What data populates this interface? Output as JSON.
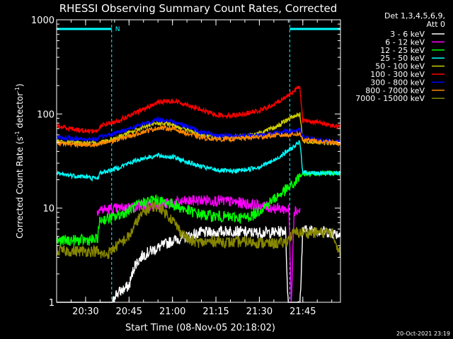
{
  "chart_data": {
    "type": "line",
    "title": "RHESSI Observing Summary Count Rates, Corrected",
    "xlabel": "Start Time (08-Nov-05 20:18:02)",
    "ylabel_main": "Corrected Count Rate (s",
    "ylabel_sup1": "-1",
    "ylabel_mid": " detector",
    "ylabel_sup2": "-1",
    "ylabel_end": ")",
    "yscale": "log",
    "ylim": [
      1,
      1000
    ],
    "xlim_min": [
      20,
      50
    ],
    "y_ticks": [
      {
        "value": 1,
        "label": "1"
      },
      {
        "value": 10,
        "label": "10"
      },
      {
        "value": 100,
        "label": "100"
      },
      {
        "value": 1000,
        "label": "1000"
      }
    ],
    "x_ticks": [
      {
        "value": 30,
        "label": "20:30"
      },
      {
        "value": 45,
        "label": "20:45"
      },
      {
        "value": 60,
        "label": "21:00"
      },
      {
        "value": 75,
        "label": "21:15"
      },
      {
        "value": 90,
        "label": "21:30"
      },
      {
        "value": 105,
        "label": "21:45"
      }
    ],
    "legend_header": "Det 1,3,4,5,6,9,",
    "legend_subheader": "Att 0",
    "timestamp": "20-Oct-2021 23:19",
    "night_marker_label": "N",
    "night_intervals": [
      [
        20,
        39
      ],
      [
        100.5,
        118
      ]
    ],
    "series": [
      {
        "name": "3 - 6 keV",
        "color": "#ffffff",
        "points": [
          [
            20,
            0.85
          ],
          [
            39,
            0.85
          ],
          [
            40,
            1.2
          ],
          [
            42,
            1.3
          ],
          [
            45,
            1.5
          ],
          [
            47,
            2.5
          ],
          [
            50,
            3.2
          ],
          [
            55,
            3.8
          ],
          [
            60,
            4.5
          ],
          [
            65,
            5.0
          ],
          [
            70,
            5.5
          ],
          [
            75,
            5.5
          ],
          [
            80,
            5.8
          ],
          [
            85,
            5.5
          ],
          [
            90,
            5.5
          ],
          [
            95,
            5.5
          ],
          [
            99,
            5.8
          ],
          [
            100,
            0.9
          ],
          [
            104,
            0.9
          ],
          [
            105,
            5.8
          ],
          [
            110,
            5.8
          ],
          [
            115,
            5.5
          ],
          [
            118,
            5.2
          ]
        ]
      },
      {
        "name": "6 - 12 keV",
        "color": "#ff00ff",
        "points": [
          [
            34,
            9.6
          ],
          [
            40,
            9.8
          ],
          [
            45,
            10.2
          ],
          [
            50,
            10.6
          ],
          [
            55,
            11.0
          ],
          [
            60,
            11.3
          ],
          [
            65,
            11.8
          ],
          [
            70,
            12.2
          ],
          [
            75,
            12.0
          ],
          [
            80,
            11.7
          ],
          [
            85,
            11.2
          ],
          [
            90,
            10.6
          ],
          [
            95,
            10.0
          ],
          [
            99,
            9.8
          ],
          [
            100.2,
            9.6
          ],
          [
            101,
            1.0
          ],
          [
            102,
            9.5
          ],
          [
            104,
            9.4
          ]
        ]
      },
      {
        "name": "12 - 25 keV",
        "color": "#00ff00",
        "points": [
          [
            20,
            4.5
          ],
          [
            34,
            4.6
          ],
          [
            35,
            7.5
          ],
          [
            40,
            8.0
          ],
          [
            45,
            9.5
          ],
          [
            50,
            11.5
          ],
          [
            53,
            12.3
          ],
          [
            55,
            12.0
          ],
          [
            60,
            11.0
          ],
          [
            65,
            9.5
          ],
          [
            70,
            8.5
          ],
          [
            75,
            8.2
          ],
          [
            80,
            8.0
          ],
          [
            85,
            7.9
          ],
          [
            88,
            8.5
          ],
          [
            92,
            10.5
          ],
          [
            95,
            12.5
          ],
          [
            99,
            15.5
          ],
          [
            102,
            18.0
          ],
          [
            104,
            22.0
          ],
          [
            105,
            23.0
          ],
          [
            110,
            23.5
          ],
          [
            115,
            23.5
          ],
          [
            118,
            23.5
          ]
        ]
      },
      {
        "name": "25 - 50 keV",
        "color": "#00ffff",
        "points": [
          [
            20,
            23.0
          ],
          [
            30,
            21.5
          ],
          [
            34,
            20.5
          ],
          [
            35,
            23.5
          ],
          [
            40,
            26.0
          ],
          [
            45,
            30.0
          ],
          [
            50,
            34.0
          ],
          [
            55,
            36.0
          ],
          [
            60,
            35.0
          ],
          [
            65,
            31.0
          ],
          [
            70,
            27.5
          ],
          [
            75,
            25.5
          ],
          [
            80,
            24.5
          ],
          [
            85,
            25.5
          ],
          [
            90,
            27.5
          ],
          [
            95,
            32.0
          ],
          [
            99,
            39.0
          ],
          [
            102,
            45.0
          ],
          [
            104,
            50.0
          ],
          [
            105,
            24.0
          ],
          [
            110,
            23.5
          ],
          [
            118,
            23.5
          ]
        ]
      },
      {
        "name": "50 - 100 keV",
        "color": "#cccc00",
        "points": [
          [
            20,
            51.0
          ],
          [
            30,
            49.0
          ],
          [
            34,
            48.5
          ],
          [
            36,
            51.0
          ],
          [
            40,
            55.0
          ],
          [
            45,
            63.0
          ],
          [
            50,
            73.0
          ],
          [
            55,
            80.0
          ],
          [
            60,
            77.0
          ],
          [
            65,
            68.0
          ],
          [
            70,
            60.0
          ],
          [
            75,
            57.0
          ],
          [
            80,
            57.0
          ],
          [
            85,
            58.0
          ],
          [
            90,
            62.0
          ],
          [
            95,
            71.0
          ],
          [
            99,
            84.0
          ],
          [
            102,
            95.0
          ],
          [
            104,
            100.0
          ],
          [
            105,
            52.0
          ],
          [
            110,
            50.0
          ],
          [
            118,
            48.5
          ]
        ]
      },
      {
        "name": "100 - 300 keV",
        "color": "#ff0000",
        "points": [
          [
            20,
            74.0
          ],
          [
            30,
            66.0
          ],
          [
            34,
            66.0
          ],
          [
            36,
            77.0
          ],
          [
            40,
            82.0
          ],
          [
            45,
            95.0
          ],
          [
            50,
            112.0
          ],
          [
            55,
            133.0
          ],
          [
            60,
            138.0
          ],
          [
            65,
            126.0
          ],
          [
            70,
            110.0
          ],
          [
            75,
            98.0
          ],
          [
            80,
            96.0
          ],
          [
            85,
            101.0
          ],
          [
            90,
            108.0
          ],
          [
            95,
            125.0
          ],
          [
            99,
            150.0
          ],
          [
            102,
            178.0
          ],
          [
            104,
            192.0
          ],
          [
            105,
            85.0
          ],
          [
            110,
            82.0
          ],
          [
            115,
            76.0
          ],
          [
            118,
            72.0
          ]
        ]
      },
      {
        "name": "300 - 800 keV",
        "color": "#0000ff",
        "points": [
          [
            20,
            56.0
          ],
          [
            30,
            54.0
          ],
          [
            34,
            54.0
          ],
          [
            36,
            58.0
          ],
          [
            40,
            62.0
          ],
          [
            45,
            70.0
          ],
          [
            50,
            79.0
          ],
          [
            55,
            87.0
          ],
          [
            60,
            84.0
          ],
          [
            65,
            74.0
          ],
          [
            70,
            64.0
          ],
          [
            75,
            59.0
          ],
          [
            80,
            58.5
          ],
          [
            85,
            58.5
          ],
          [
            90,
            59.5
          ],
          [
            95,
            62.0
          ],
          [
            99,
            65.0
          ],
          [
            102,
            66.0
          ],
          [
            104,
            67.0
          ],
          [
            105,
            57.0
          ],
          [
            110,
            53.0
          ],
          [
            118,
            50.0
          ]
        ]
      },
      {
        "name": "800 - 7000 keV",
        "color": "#ff8800",
        "points": [
          [
            20,
            49.0
          ],
          [
            30,
            47.0
          ],
          [
            34,
            46.5
          ],
          [
            36,
            49.0
          ],
          [
            40,
            52.0
          ],
          [
            45,
            58.0
          ],
          [
            50,
            65.0
          ],
          [
            55,
            71.0
          ],
          [
            60,
            70.0
          ],
          [
            65,
            62.0
          ],
          [
            70,
            56.0
          ],
          [
            75,
            54.0
          ],
          [
            80,
            54.0
          ],
          [
            85,
            55.5
          ],
          [
            90,
            57.0
          ],
          [
            95,
            59.0
          ],
          [
            99,
            60.0
          ],
          [
            102,
            61.0
          ],
          [
            104,
            61.5
          ],
          [
            105,
            53.0
          ],
          [
            110,
            51.0
          ],
          [
            118,
            48.5
          ]
        ]
      },
      {
        "name": "7000 - 15000 keV",
        "color": "#888800",
        "points": [
          [
            20,
            3.5
          ],
          [
            34,
            3.5
          ],
          [
            35,
            3.2
          ],
          [
            38,
            3.3
          ],
          [
            40,
            3.8
          ],
          [
            45,
            5.0
          ],
          [
            48,
            7.5
          ],
          [
            50,
            9.0
          ],
          [
            53,
            10.5
          ],
          [
            56,
            10.0
          ],
          [
            60,
            7.5
          ],
          [
            63,
            5.5
          ],
          [
            66,
            4.5
          ],
          [
            70,
            4.3
          ],
          [
            75,
            4.5
          ],
          [
            80,
            4.3
          ],
          [
            85,
            4.4
          ],
          [
            90,
            4.3
          ],
          [
            95,
            4.2
          ],
          [
            99,
            4.3
          ],
          [
            102,
            5.5
          ],
          [
            105,
            5.5
          ],
          [
            110,
            5.5
          ],
          [
            115,
            5.5
          ],
          [
            118,
            3.3
          ]
        ]
      }
    ]
  }
}
